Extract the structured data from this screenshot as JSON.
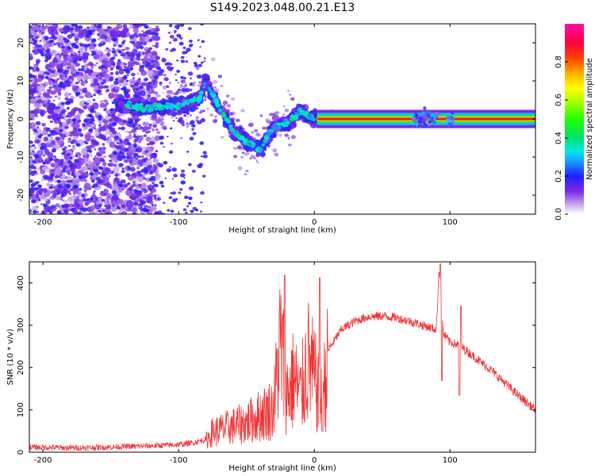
{
  "title": "S149.2023.048.00.21.E13",
  "chart_data": [
    {
      "type": "heatmap",
      "xlabel": "Height of straight line (km)",
      "ylabel": "Frequency (Hz)",
      "xlim": [
        -210,
        163
      ],
      "ylim": [
        -25,
        25
      ],
      "x_ticks": [
        -200,
        -100,
        0,
        100
      ],
      "y_ticks": [
        -20,
        -10,
        0,
        10,
        20
      ],
      "colormap": "gist_ncar_r",
      "colorbar": {
        "label": "Normalized spectral amplitude",
        "range": [
          0.0,
          1.0
        ],
        "ticks": [
          0.0,
          0.2,
          0.4,
          0.6,
          0.8
        ]
      },
      "ridge": {
        "description_points_x": [
          -140,
          -120,
          -100,
          -85,
          -80,
          -70,
          -60,
          -50,
          -40,
          -30,
          -20,
          -10,
          0,
          20,
          60,
          75,
          85,
          100,
          163
        ],
        "description_points_y": [
          3.5,
          3,
          3.5,
          5,
          10,
          3,
          -3,
          -6,
          -8,
          -2,
          -1,
          2,
          0,
          0,
          0,
          0,
          0,
          0,
          0
        ]
      }
    },
    {
      "type": "line",
      "xlabel": "Height of straight line (km)",
      "ylabel": "SNR (10 * v/v)",
      "xlim": [
        -210,
        163
      ],
      "ylim": [
        0,
        450
      ],
      "x_ticks": [
        -200,
        -100,
        0,
        100
      ],
      "y_ticks": [
        0,
        100,
        200,
        300,
        400
      ],
      "color": "#ee3333",
      "series": [
        {
          "x": [
            -210,
            -180,
            -150,
            -120,
            -100,
            -90,
            -80,
            -75,
            -70,
            -60,
            -50,
            -40,
            -30,
            -25,
            -20,
            -15,
            -10,
            -5,
            0,
            5,
            10,
            20,
            30,
            40,
            50,
            60,
            70,
            80,
            90,
            92,
            95,
            100,
            105,
            108,
            110,
            120,
            130,
            140,
            150,
            163
          ],
          "y": [
            12,
            10,
            12,
            15,
            18,
            22,
            30,
            55,
            60,
            70,
            80,
            100,
            120,
            300,
            160,
            200,
            150,
            250,
            200,
            130,
            240,
            290,
            310,
            320,
            322,
            318,
            310,
            300,
            290,
            440,
            280,
            260,
            255,
            250,
            245,
            220,
            195,
            165,
            135,
            100
          ]
        }
      ]
    }
  ]
}
